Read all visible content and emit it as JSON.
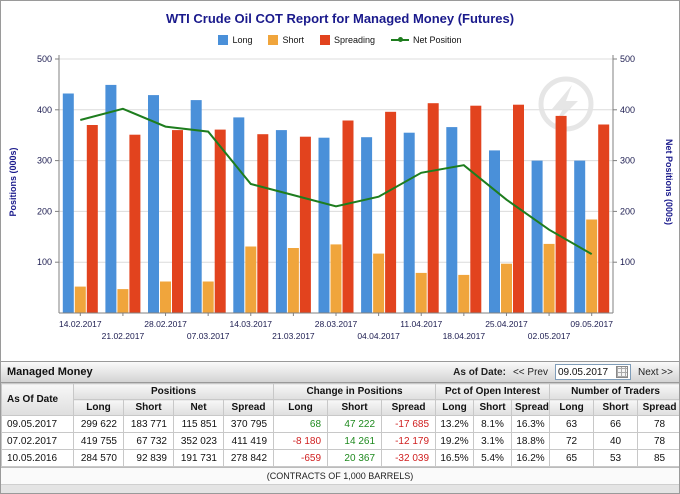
{
  "chart": {
    "title": "WTI Crude Oil COT Report for Managed Money (Futures)",
    "y_left_label": "Positions (000s)",
    "y_right_label": "Net Positions (000s)"
  },
  "chart_data": {
    "type": "bar",
    "title": "WTI Crude Oil COT Report for Managed Money (Futures)",
    "categories": [
      "14.02.2017",
      "21.02.2017",
      "28.02.2017",
      "07.03.2017",
      "14.03.2017",
      "21.03.2017",
      "28.03.2017",
      "04.04.2017",
      "11.04.2017",
      "18.04.2017",
      "25.04.2017",
      "02.05.2017",
      "09.05.2017"
    ],
    "series": [
      {
        "name": "Long",
        "type": "bar",
        "color": "#4a90d9",
        "values": [
          432,
          449,
          429,
          419,
          385,
          360,
          345,
          346,
          355,
          366,
          320,
          300,
          300
        ]
      },
      {
        "name": "Short",
        "type": "bar",
        "color": "#f0a53c",
        "values": [
          52,
          47,
          62,
          62,
          131,
          128,
          135,
          117,
          79,
          75,
          97,
          136,
          184
        ]
      },
      {
        "name": "Spreading",
        "type": "bar",
        "color": "#e2431e",
        "values": [
          370,
          351,
          360,
          361,
          352,
          347,
          379,
          396,
          413,
          408,
          410,
          388,
          371
        ]
      },
      {
        "name": "Net Position",
        "type": "line",
        "color": "#1e7d1e",
        "values": [
          380,
          402,
          367,
          357,
          254,
          232,
          210,
          229,
          276,
          291,
          223,
          164,
          116
        ]
      }
    ],
    "ylabel_left": "Positions (000s)",
    "ylabel_right": "Net Positions (000s)",
    "ylim": [
      0,
      500
    ],
    "yticks": [
      100,
      200,
      300,
      400,
      500
    ],
    "grid": true,
    "legend_position": "top"
  },
  "table": {
    "title": "Managed Money",
    "as_of_label": "As of Date:",
    "prev_label": "<< Prev",
    "next_label": "Next >>",
    "date_value": "09.05.2017",
    "date_col_header": "As Of Date",
    "groups": [
      "Positions",
      "Change in Positions",
      "Pct of Open Interest",
      "Number of Traders"
    ],
    "subheaders": [
      "Long",
      "Short",
      "Net",
      "Spread",
      "Long",
      "Short",
      "Spread",
      "Long",
      "Short",
      "Spread",
      "Long",
      "Short",
      "Spread"
    ],
    "rows": [
      {
        "date": "09.05.2017",
        "positions": [
          "299 622",
          "183 771",
          "115 851",
          "370 795"
        ],
        "change": [
          "68",
          "47 222",
          "-17 685"
        ],
        "pct": [
          "13.2%",
          "8.1%",
          "16.3%"
        ],
        "traders": [
          "63",
          "66",
          "78"
        ]
      },
      {
        "date": "07.02.2017",
        "positions": [
          "419 755",
          "67 732",
          "352 023",
          "411 419"
        ],
        "change": [
          "-8 180",
          "14 261",
          "-12 179"
        ],
        "pct": [
          "19.2%",
          "3.1%",
          "18.8%"
        ],
        "traders": [
          "72",
          "40",
          "78"
        ]
      },
      {
        "date": "10.05.2016",
        "positions": [
          "284 570",
          "92 839",
          "191 731",
          "278 842"
        ],
        "change": [
          "-659",
          "20 367",
          "-32 039"
        ],
        "pct": [
          "16.5%",
          "5.4%",
          "16.2%"
        ],
        "traders": [
          "65",
          "53",
          "85"
        ]
      }
    ],
    "footer": "(CONTRACTS OF 1,000 BARRELS)"
  }
}
